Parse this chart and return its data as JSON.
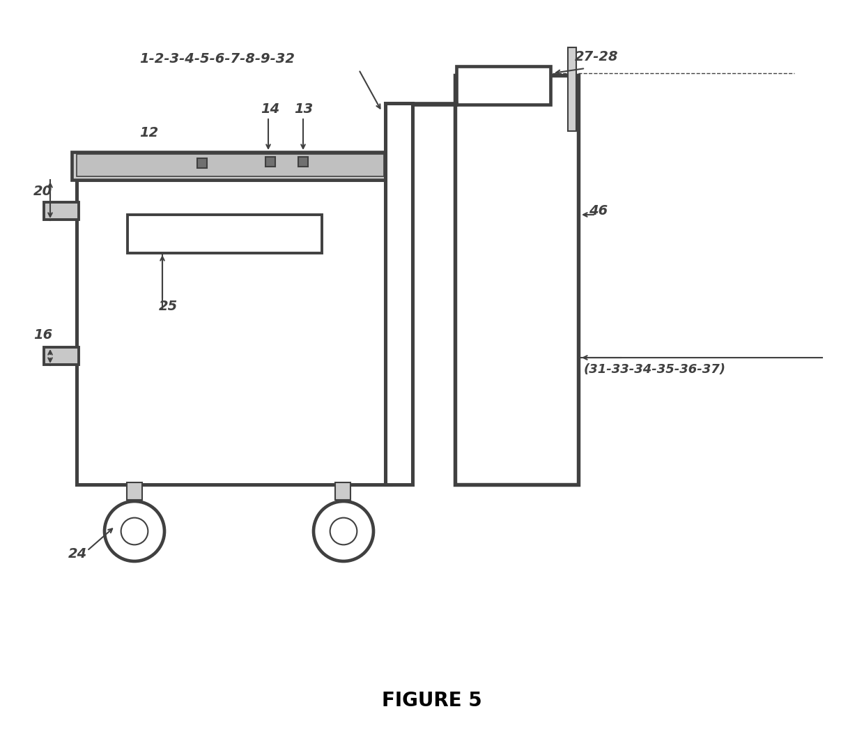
{
  "title": "FIGURE 5",
  "bg_color": "#ffffff",
  "line_color": "#404040",
  "line_width": 2.8,
  "thin_line": 1.5,
  "labels": {
    "top_label": "1-2-3-4-5-6-7-8-9-32",
    "top_right_label": "27-28",
    "label_12": "12",
    "label_13": "13",
    "label_14": "14",
    "label_20": "20",
    "label_16": "16",
    "label_24": "24",
    "label_25": "25",
    "label_46": "46",
    "label_31": "(31-33-34-35-36-37)"
  },
  "font_size": 14,
  "title_font_size": 20
}
